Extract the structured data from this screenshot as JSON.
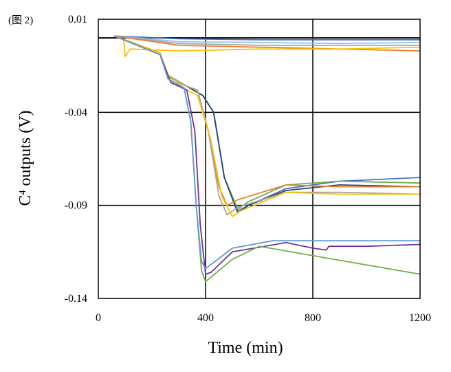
{
  "figure_label": "(图 2)",
  "chart_data": {
    "type": "line",
    "title": "",
    "xlabel": "Time (min)",
    "ylabel_main": "C",
    "ylabel_sup": "4",
    "ylabel_rest": " outputs (V)",
    "xlim": [
      0,
      1200
    ],
    "ylim": [
      -0.14,
      0.01
    ],
    "xticks": [
      0,
      400,
      800,
      1200
    ],
    "xtick_labels": [
      "0",
      "400",
      "800",
      "1200"
    ],
    "yticks": [
      0.01,
      -0.04,
      -0.09,
      -0.14
    ],
    "ytick_labels": [
      "0.01",
      "-0.04",
      "-0.09",
      "-0.14"
    ],
    "reference_line_y": 0.0,
    "grid": true,
    "legend": "none",
    "series": [
      {
        "color": "#4472C4",
        "x": [
          60,
          300,
          600,
          900,
          1200
        ],
        "y": [
          0.001,
          -0.0005,
          -0.001,
          -0.001,
          -0.001
        ]
      },
      {
        "color": "#9DC3E6",
        "x": [
          60,
          300,
          600,
          900,
          1200
        ],
        "y": [
          0.001,
          -0.002,
          -0.0025,
          -0.003,
          -0.0025
        ]
      },
      {
        "color": "#A5A5A5",
        "x": [
          60,
          300,
          600,
          900,
          1200
        ],
        "y": [
          0.001,
          -0.003,
          -0.004,
          -0.004,
          -0.004
        ]
      },
      {
        "color": "#ED7D31",
        "x": [
          60,
          300,
          600,
          900,
          1200
        ],
        "y": [
          0.001,
          -0.004,
          -0.005,
          -0.006,
          -0.007
        ]
      },
      {
        "color": "#FFC000",
        "x": [
          60,
          95,
          100,
          120,
          300,
          600,
          900,
          1200
        ],
        "y": [
          0.001,
          -0.001,
          -0.01,
          -0.006,
          -0.007,
          -0.006,
          -0.006,
          -0.005
        ]
      },
      {
        "color": "#4472C4",
        "x": [
          60,
          230,
          260,
          330,
          390,
          430,
          470,
          520,
          560,
          700,
          900,
          1200
        ],
        "y": [
          0.001,
          -0.008,
          -0.021,
          -0.026,
          -0.031,
          -0.04,
          -0.075,
          -0.093,
          -0.09,
          -0.081,
          -0.077,
          -0.075
        ]
      },
      {
        "color": "#70AD47",
        "x": [
          60,
          230,
          260,
          330,
          390,
          430,
          470,
          520,
          560,
          700,
          900,
          1200
        ],
        "y": [
          0.001,
          -0.008,
          -0.021,
          -0.026,
          -0.031,
          -0.04,
          -0.075,
          -0.092,
          -0.088,
          -0.079,
          -0.077,
          -0.078
        ]
      },
      {
        "color": "#264478",
        "x": [
          60,
          230,
          260,
          330,
          390,
          430,
          470,
          520,
          560,
          700,
          900,
          1200
        ],
        "y": [
          0.001,
          -0.008,
          -0.02,
          -0.026,
          -0.031,
          -0.04,
          -0.075,
          -0.094,
          -0.09,
          -0.082,
          -0.079,
          -0.08
        ]
      },
      {
        "color": "#ED7D31",
        "x": [
          60,
          230,
          260,
          330,
          370,
          410,
          450,
          480,
          520,
          700,
          900,
          1200
        ],
        "y": [
          0.001,
          -0.008,
          -0.02,
          -0.026,
          -0.028,
          -0.05,
          -0.08,
          -0.09,
          -0.087,
          -0.079,
          -0.08,
          -0.08
        ]
      },
      {
        "color": "#A5A5A5",
        "x": [
          60,
          230,
          260,
          330,
          370,
          410,
          450,
          480,
          520,
          700,
          900,
          1200
        ],
        "y": [
          0.001,
          -0.008,
          -0.02,
          -0.026,
          -0.028,
          -0.05,
          -0.085,
          -0.095,
          -0.091,
          -0.083,
          -0.083,
          -0.084
        ]
      },
      {
        "color": "#FFC000",
        "x": [
          60,
          230,
          260,
          330,
          370,
          420,
          460,
          500,
          530,
          700,
          900,
          1200
        ],
        "y": [
          0.001,
          -0.008,
          -0.02,
          -0.028,
          -0.031,
          -0.055,
          -0.085,
          -0.096,
          -0.093,
          -0.083,
          -0.084,
          -0.084
        ]
      },
      {
        "color": "#7030A0",
        "x": [
          60,
          230,
          270,
          330,
          360,
          380,
          400,
          420,
          500,
          700,
          800,
          850,
          860,
          1000,
          1200
        ],
        "y": [
          0.001,
          -0.009,
          -0.024,
          -0.028,
          -0.05,
          -0.1,
          -0.127,
          -0.126,
          -0.115,
          -0.11,
          -0.113,
          -0.114,
          -0.112,
          -0.112,
          -0.111
        ]
      },
      {
        "color": "#70AD47",
        "x": [
          60,
          230,
          260,
          320,
          345,
          365,
          385,
          400,
          500,
          600,
          800,
          1000,
          1200
        ],
        "y": [
          0.001,
          -0.009,
          -0.022,
          -0.027,
          -0.045,
          -0.09,
          -0.125,
          -0.131,
          -0.119,
          -0.112,
          -0.117,
          -0.122,
          -0.127
        ]
      },
      {
        "color": "#5B9BD5",
        "x": [
          60,
          230,
          260,
          320,
          345,
          365,
          385,
          400,
          500,
          650,
          800,
          1000,
          1200
        ],
        "y": [
          0.001,
          -0.009,
          -0.022,
          -0.027,
          -0.045,
          -0.09,
          -0.12,
          -0.124,
          -0.113,
          -0.109,
          -0.109,
          -0.109,
          -0.109
        ]
      }
    ]
  }
}
